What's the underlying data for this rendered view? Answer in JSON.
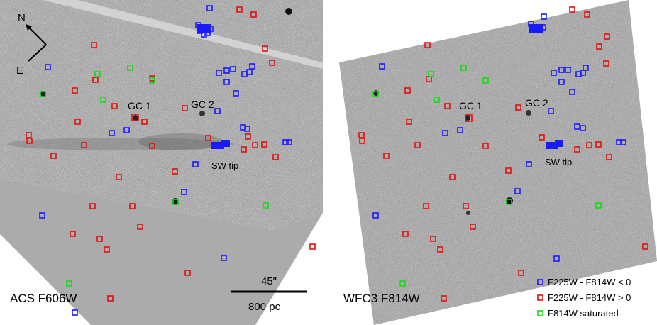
{
  "left_panel": {
    "instrument_label": "ACS F606W",
    "compass": {
      "north": "N",
      "east": "E"
    },
    "scale_bar": {
      "angle": "45\"",
      "distance": "800 pc"
    },
    "labels": {
      "gc1": "GC 1",
      "gc2": "GC 2",
      "sw_tip": "SW tip"
    }
  },
  "right_panel": {
    "instrument_label": "WFC3 F814W",
    "labels": {
      "gc1": "GC 1",
      "gc2": "GC 2",
      "sw_tip": "SW tip"
    }
  },
  "legend": {
    "items": [
      {
        "label": "F225W - F814W < 0",
        "color": "#1a1aff"
      },
      {
        "label": "F225W - F814W > 0",
        "color": "#e01010"
      },
      {
        "label": "F814W saturated",
        "color": "#11dd11"
      }
    ]
  },
  "colors": {
    "blue_marker": "#1a1aff",
    "red_marker": "#e01010",
    "green_marker": "#11dd11",
    "background_gray": "#ababab",
    "image_gray": "#9a9a9a"
  }
}
